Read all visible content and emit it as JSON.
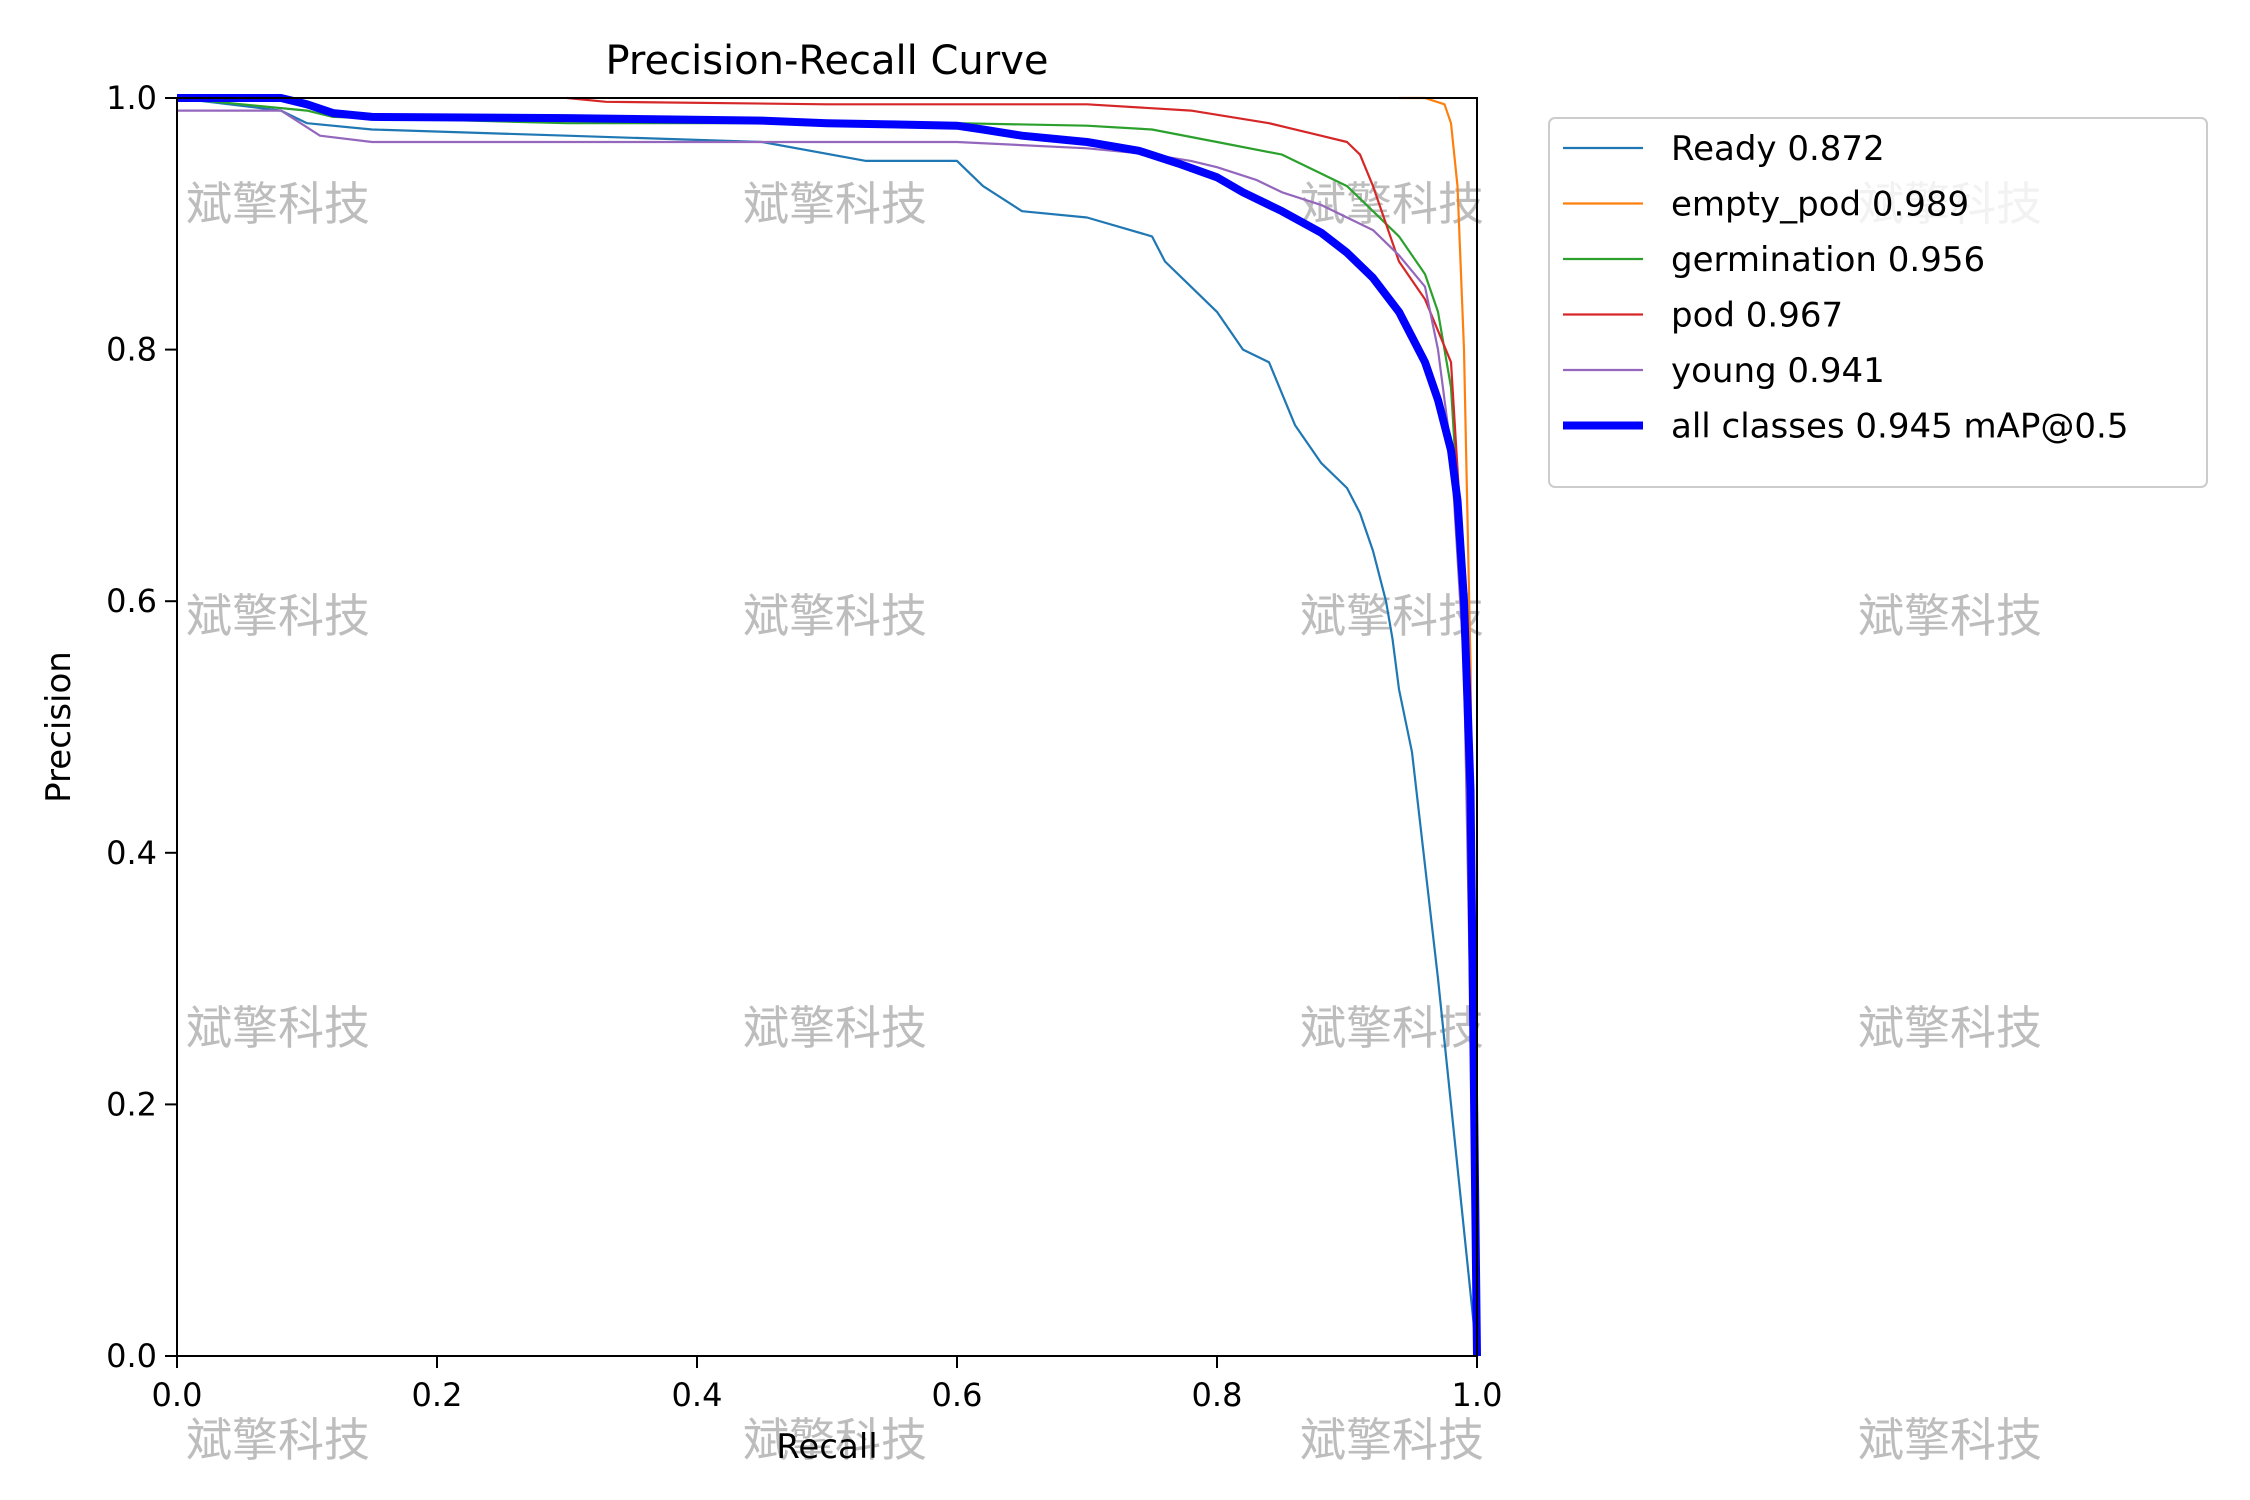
{
  "chart_data": {
    "type": "line",
    "title": "Precision-Recall Curve",
    "xlabel": "Recall",
    "ylabel": "Precision",
    "xlim": [
      0,
      1
    ],
    "ylim": [
      0,
      1
    ],
    "xticks": [
      "0.0",
      "0.2",
      "0.4",
      "0.6",
      "0.8",
      "1.0"
    ],
    "yticks": [
      "0.0",
      "0.2",
      "0.4",
      "0.6",
      "0.8",
      "1.0"
    ],
    "grid": false,
    "legend_position": "outside-right-top",
    "watermark": "斌擎科技",
    "series": [
      {
        "name": "Ready 0.872",
        "color": "#1f77b4",
        "x": [
          0,
          0.08,
          0.1,
          0.15,
          0.3,
          0.45,
          0.53,
          0.6,
          0.62,
          0.65,
          0.7,
          0.75,
          0.76,
          0.78,
          0.8,
          0.82,
          0.84,
          0.86,
          0.88,
          0.9,
          0.91,
          0.92,
          0.93,
          0.935,
          0.94,
          0.95,
          0.97,
          1.0
        ],
        "y": [
          1.0,
          0.99,
          0.98,
          0.975,
          0.97,
          0.965,
          0.95,
          0.95,
          0.93,
          0.91,
          0.905,
          0.89,
          0.87,
          0.85,
          0.83,
          0.8,
          0.79,
          0.74,
          0.71,
          0.69,
          0.67,
          0.64,
          0.6,
          0.57,
          0.53,
          0.48,
          0.3,
          0.0
        ]
      },
      {
        "name": "empty_pod 0.989",
        "color": "#ff7f0e",
        "x": [
          0.94,
          0.96,
          0.975,
          0.98,
          0.985,
          0.99,
          0.995,
          1.0
        ],
        "y": [
          1.0,
          1.0,
          0.995,
          0.98,
          0.93,
          0.8,
          0.55,
          0.0
        ]
      },
      {
        "name": "germination 0.956",
        "color": "#2ca02c",
        "x": [
          0,
          0.1,
          0.12,
          0.3,
          0.5,
          0.6,
          0.7,
          0.75,
          0.8,
          0.85,
          0.88,
          0.9,
          0.92,
          0.94,
          0.96,
          0.97,
          0.98,
          0.99,
          1.0
        ],
        "y": [
          1.0,
          0.99,
          0.985,
          0.98,
          0.98,
          0.98,
          0.978,
          0.975,
          0.965,
          0.955,
          0.94,
          0.93,
          0.91,
          0.89,
          0.86,
          0.83,
          0.77,
          0.6,
          0.0
        ]
      },
      {
        "name": "pod 0.967",
        "color": "#d62728",
        "x": [
          0.3,
          0.33,
          0.5,
          0.7,
          0.78,
          0.84,
          0.88,
          0.9,
          0.91,
          0.92,
          0.93,
          0.94,
          0.96,
          0.98,
          0.99,
          1.0
        ],
        "y": [
          1.0,
          0.997,
          0.995,
          0.995,
          0.99,
          0.98,
          0.97,
          0.965,
          0.955,
          0.93,
          0.9,
          0.87,
          0.84,
          0.79,
          0.62,
          0.0
        ]
      },
      {
        "name": "young 0.941",
        "color": "#9467bd",
        "x": [
          0,
          0.08,
          0.11,
          0.15,
          0.3,
          0.5,
          0.6,
          0.7,
          0.75,
          0.78,
          0.8,
          0.83,
          0.85,
          0.88,
          0.9,
          0.92,
          0.94,
          0.96,
          0.97,
          0.98,
          0.99,
          1.0
        ],
        "y": [
          0.99,
          0.99,
          0.97,
          0.965,
          0.965,
          0.965,
          0.965,
          0.96,
          0.955,
          0.95,
          0.945,
          0.935,
          0.925,
          0.915,
          0.905,
          0.895,
          0.875,
          0.85,
          0.8,
          0.72,
          0.55,
          0.0
        ]
      },
      {
        "name": "all classes 0.945 mAP@0.5",
        "color": "#0000ff",
        "thick": true,
        "x": [
          0,
          0.08,
          0.1,
          0.12,
          0.15,
          0.3,
          0.45,
          0.5,
          0.55,
          0.6,
          0.62,
          0.65,
          0.7,
          0.74,
          0.77,
          0.8,
          0.82,
          0.85,
          0.88,
          0.9,
          0.92,
          0.94,
          0.95,
          0.96,
          0.97,
          0.98,
          0.985,
          0.99,
          0.995,
          1.0
        ],
        "y": [
          1.0,
          1.0,
          0.995,
          0.988,
          0.985,
          0.984,
          0.982,
          0.98,
          0.979,
          0.978,
          0.975,
          0.97,
          0.965,
          0.958,
          0.948,
          0.937,
          0.925,
          0.91,
          0.893,
          0.877,
          0.857,
          0.83,
          0.81,
          0.79,
          0.76,
          0.72,
          0.68,
          0.6,
          0.45,
          0.0
        ]
      }
    ]
  }
}
